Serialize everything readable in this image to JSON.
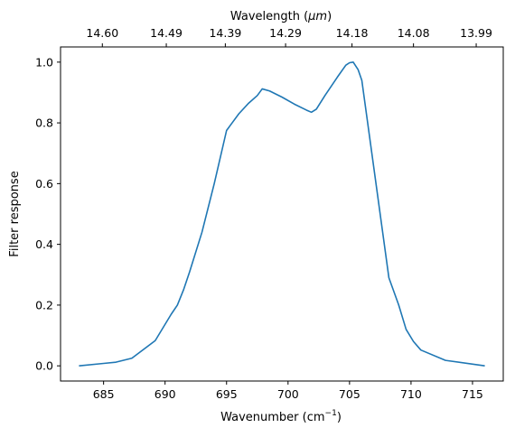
{
  "chart_data": {
    "type": "line",
    "xlabel": "Wavenumber (cm",
    "xlabel_sup": "−1",
    "xlabel_suffix": ")",
    "ylabel": "Filter response",
    "top_xlabel": "Wavelength (",
    "top_xlabel_unit": "μm",
    "top_xlabel_suffix": ")",
    "xlim": [
      681.5,
      717.5
    ],
    "ylim": [
      -0.05,
      1.05
    ],
    "grid": false,
    "x_ticks": [
      {
        "value": 685,
        "label": "685"
      },
      {
        "value": 690,
        "label": "690"
      },
      {
        "value": 695,
        "label": "695"
      },
      {
        "value": 700,
        "label": "700"
      },
      {
        "value": 705,
        "label": "705"
      },
      {
        "value": 710,
        "label": "710"
      },
      {
        "value": 715,
        "label": "715"
      }
    ],
    "y_ticks": [
      {
        "value": 0.0,
        "label": "0.0"
      },
      {
        "value": 0.2,
        "label": "0.2"
      },
      {
        "value": 0.4,
        "label": "0.4"
      },
      {
        "value": 0.6,
        "label": "0.6"
      },
      {
        "value": 0.8,
        "label": "0.8"
      },
      {
        "value": 1.0,
        "label": "1.0"
      }
    ],
    "top_ticks": [
      {
        "value": 684.9,
        "label": "14.60"
      },
      {
        "value": 690.1,
        "label": "14.49"
      },
      {
        "value": 694.9,
        "label": "14.39"
      },
      {
        "value": 699.8,
        "label": "14.29"
      },
      {
        "value": 705.2,
        "label": "14.18"
      },
      {
        "value": 710.2,
        "label": "14.08"
      },
      {
        "value": 715.3,
        "label": "13.99"
      }
    ],
    "series": [
      {
        "color": "#1f77b4",
        "x": [
          683.0,
          685.0,
          686.0,
          687.3,
          689.2,
          690.5,
          691.0,
          691.5,
          692.0,
          693.0,
          694.0,
          695.0,
          696.0,
          696.8,
          697.5,
          697.9,
          698.5,
          699.5,
          700.5,
          701.5,
          701.9,
          702.3,
          703.0,
          704.0,
          704.7,
          705.0,
          705.3,
          705.7,
          706.0,
          707.0,
          708.2,
          709.0,
          709.6,
          710.2,
          710.8,
          712.8,
          716.0
        ],
        "y": [
          0.0,
          0.008,
          0.012,
          0.025,
          0.083,
          0.17,
          0.2,
          0.25,
          0.31,
          0.44,
          0.6,
          0.775,
          0.83,
          0.865,
          0.89,
          0.912,
          0.905,
          0.885,
          0.862,
          0.842,
          0.835,
          0.845,
          0.89,
          0.95,
          0.99,
          0.998,
          1.0,
          0.975,
          0.94,
          0.645,
          0.29,
          0.2,
          0.12,
          0.08,
          0.052,
          0.018,
          0.0
        ]
      }
    ]
  }
}
